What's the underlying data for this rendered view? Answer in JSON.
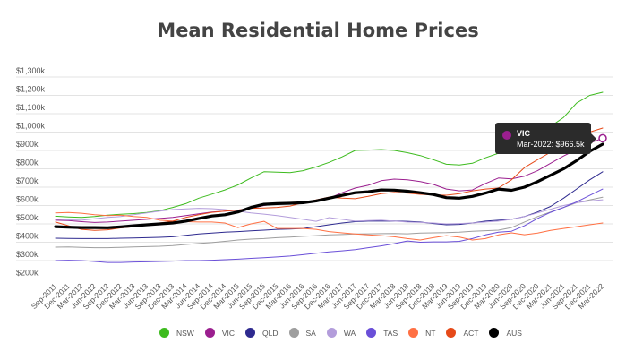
{
  "chart_data": {
    "type": "line",
    "title": "Mean Residential Home Prices",
    "xlabel": "",
    "ylabel": "",
    "ylim": [
      200,
      1300
    ],
    "yticks": [
      200,
      300,
      400,
      500,
      600,
      700,
      800,
      900,
      1000,
      1100,
      1200,
      1300
    ],
    "ytick_labels": [
      "$200k",
      "$300k",
      "$400k",
      "$500k",
      "$600k",
      "$700k",
      "$800k",
      "$900k",
      "$1,000k",
      "$1,100k",
      "$1,200k",
      "$1,300k"
    ],
    "grid": true,
    "legend_position": "bottom",
    "categories": [
      "Sep-2011",
      "Dec-2011",
      "Mar-2012",
      "Jun-2012",
      "Sep-2012",
      "Dec-2012",
      "Mar-2013",
      "Jun-2013",
      "Sep-2013",
      "Dec-2013",
      "Mar-2014",
      "Jun-2014",
      "Sep-2014",
      "Dec-2014",
      "Mar-2015",
      "Jun-2015",
      "Sep-2015",
      "Dec-2015",
      "Mar-2016",
      "Jun-2016",
      "Sep-2016",
      "Dec-2016",
      "Mar-2017",
      "Jun-2017",
      "Sep-2017",
      "Dec-2017",
      "Mar-2018",
      "Jun-2018",
      "Sep-2018",
      "Dec-2018",
      "Mar-2019",
      "Jun-2019",
      "Sep-2019",
      "Dec-2019",
      "Mar-2020",
      "Jun-2020",
      "Sep-2020",
      "Dec-2020",
      "Mar-2021",
      "Jun-2021",
      "Sep-2021",
      "Dec-2021",
      "Mar-2022"
    ],
    "series": [
      {
        "name": "NSW",
        "color": "#3dbb1e",
        "values": [
          542,
          538,
          535,
          540,
          548,
          552,
          556,
          562,
          572,
          590,
          610,
          640,
          662,
          685,
          712,
          750,
          784,
          782,
          779,
          790,
          810,
          835,
          865,
          900,
          902,
          905,
          900,
          888,
          872,
          850,
          825,
          821,
          830,
          860,
          885,
          895,
          915,
          960,
          1030,
          1080,
          1158,
          1200,
          1217
        ]
      },
      {
        "name": "VIC",
        "color": "#9b1f8f",
        "values": [
          520,
          518,
          512,
          508,
          510,
          515,
          520,
          525,
          530,
          535,
          545,
          555,
          565,
          570,
          575,
          585,
          600,
          610,
          612,
          615,
          625,
          640,
          670,
          695,
          710,
          735,
          744,
          740,
          730,
          715,
          690,
          680,
          685,
          720,
          750,
          745,
          760,
          790,
          830,
          870,
          905,
          940,
          966.5
        ]
      },
      {
        "name": "QLD",
        "color": "#2e2a8f",
        "values": [
          422,
          421,
          420,
          420,
          420,
          422,
          423,
          425,
          427,
          430,
          438,
          445,
          450,
          455,
          458,
          462,
          466,
          470,
          472,
          475,
          485,
          495,
          505,
          512,
          515,
          515,
          516,
          514,
          510,
          502,
          495,
          497,
          505,
          515,
          520,
          525,
          540,
          565,
          595,
          640,
          690,
          740,
          784
        ]
      },
      {
        "name": "SA",
        "color": "#9e9e9e",
        "values": [
          373,
          374,
          372,
          370,
          370,
          372,
          374,
          376,
          378,
          382,
          388,
          393,
          398,
          405,
          412,
          417,
          420,
          425,
          428,
          432,
          436,
          440,
          442,
          445,
          446,
          447,
          448,
          446,
          450,
          451,
          452,
          455,
          460,
          463,
          466,
          480,
          510,
          540,
          565,
          590,
          615,
          630,
          645
        ]
      },
      {
        "name": "WA",
        "color": "#b39ddb",
        "values": [
          525,
          522,
          520,
          528,
          535,
          540,
          550,
          560,
          570,
          578,
          582,
          585,
          583,
          578,
          570,
          560,
          553,
          545,
          535,
          525,
          514,
          534,
          525,
          515,
          518,
          520,
          515,
          510,
          508,
          505,
          500,
          502,
          505,
          510,
          515,
          525,
          540,
          560,
          580,
          600,
          615,
          625,
          631
        ]
      },
      {
        "name": "TAS",
        "color": "#6a4fd8",
        "values": [
          300,
          302,
          300,
          295,
          290,
          290,
          292,
          293,
          295,
          297,
          300,
          300,
          302,
          305,
          308,
          312,
          316,
          320,
          325,
          332,
          340,
          348,
          353,
          360,
          370,
          380,
          392,
          407,
          400,
          402,
          402,
          405,
          420,
          440,
          455,
          460,
          490,
          530,
          563,
          590,
          620,
          655,
          690
        ]
      },
      {
        "name": "NT",
        "color": "#ff7043",
        "values": [
          560,
          562,
          558,
          550,
          545,
          548,
          540,
          535,
          520,
          515,
          512,
          510,
          510,
          505,
          480,
          500,
          514,
          475,
          475,
          475,
          470,
          458,
          451,
          445,
          440,
          436,
          430,
          420,
          412,
          425,
          436,
          428,
          412,
          420,
          440,
          451,
          441,
          450,
          465,
          475,
          485,
          495,
          505
        ]
      },
      {
        "name": "ACT",
        "color": "#e64a19",
        "values": [
          510,
          490,
          470,
          465,
          468,
          478,
          485,
          495,
          505,
          515,
          535,
          550,
          563,
          570,
          575,
          585,
          587,
          590,
          597,
          615,
          630,
          646,
          640,
          637,
          650,
          665,
          671,
          668,
          661,
          658,
          656,
          665,
          680,
          690,
          695,
          740,
          807,
          850,
          890,
          930,
          970,
          1000,
          1022
        ]
      },
      {
        "name": "AUS",
        "color": "#000000",
        "values": [
          485,
          482,
          480,
          480,
          479,
          484,
          490,
          495,
          500,
          505,
          515,
          530,
          543,
          550,
          565,
          590,
          607,
          610,
          612,
          615,
          625,
          640,
          655,
          670,
          675,
          685,
          684,
          678,
          670,
          660,
          643,
          640,
          650,
          668,
          690,
          683,
          700,
          730,
          765,
          800,
          845,
          895,
          934
        ]
      }
    ],
    "tooltip": {
      "series": "VIC",
      "label": "Mar-2022: $966.5k",
      "color": "#9b1f8f"
    }
  }
}
